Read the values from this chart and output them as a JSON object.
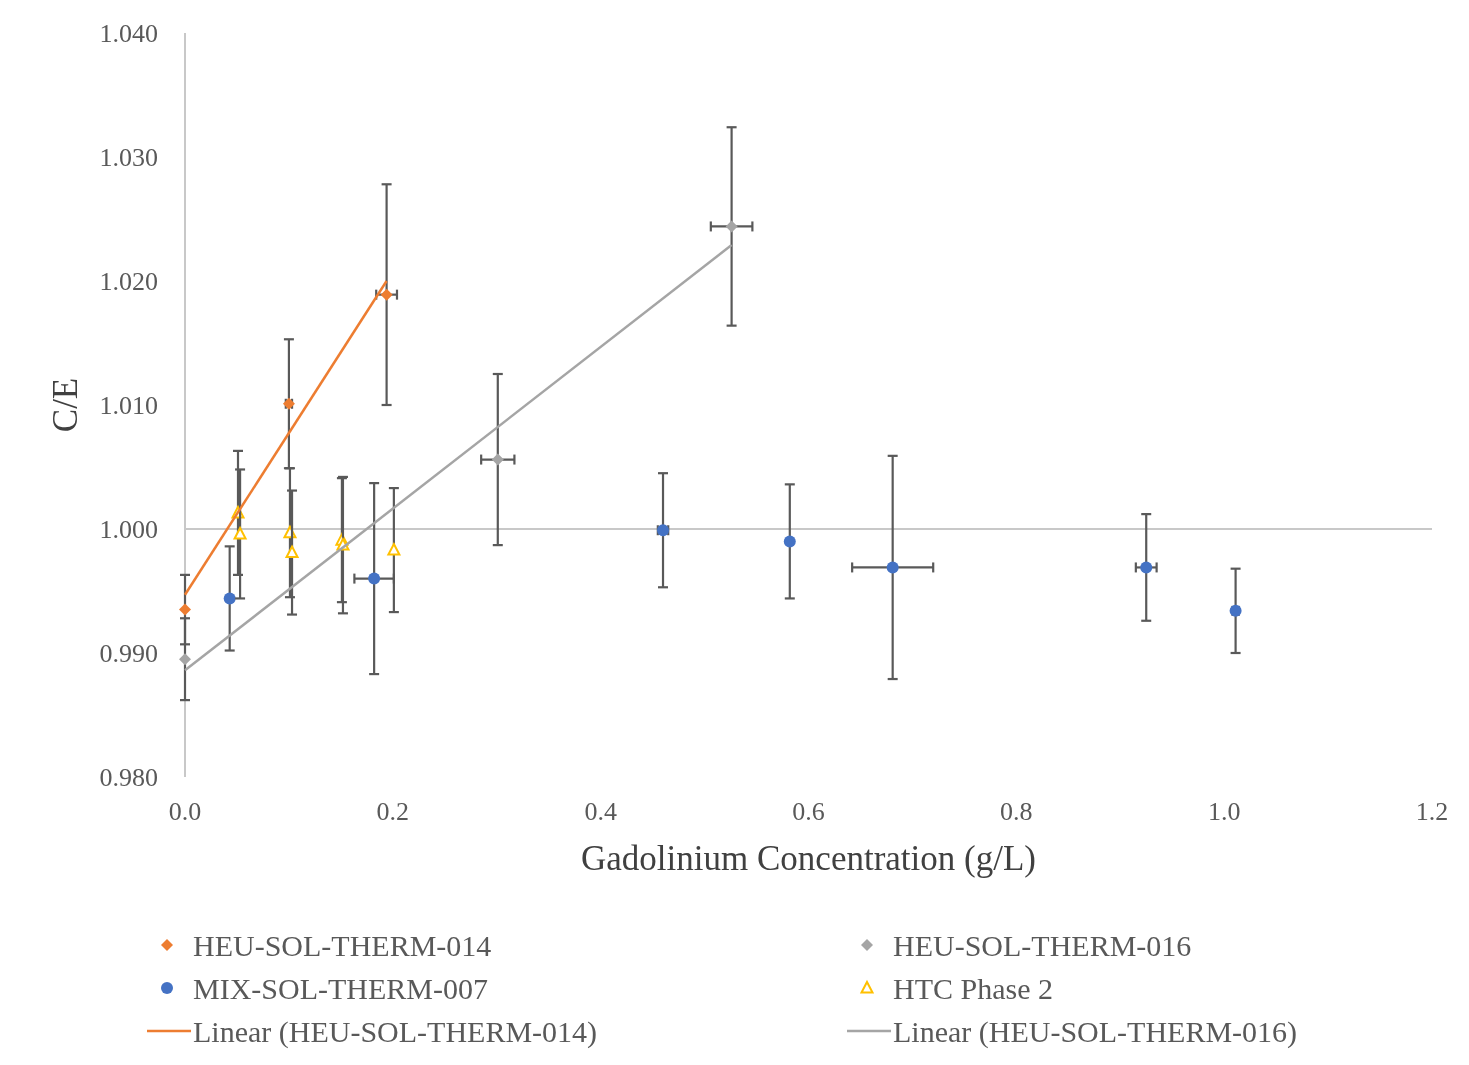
{
  "chart_data": {
    "type": "scatter",
    "xlabel": "Gadolinium Concentration (g/L)",
    "ylabel": "C/E",
    "xlim": [
      0,
      1.2
    ],
    "xticks": [
      {
        "value": 0,
        "label": "0.0"
      },
      {
        "value": 0.2,
        "label": "0.2"
      },
      {
        "value": 0.4,
        "label": "0.4"
      },
      {
        "value": 0.6,
        "label": "0.6"
      },
      {
        "value": 0.8,
        "label": "0.8"
      },
      {
        "value": 1,
        "label": "1.0"
      },
      {
        "value": 1.2,
        "label": "1.2"
      }
    ],
    "ylim": [
      0.98,
      1.04
    ],
    "yticks": [
      {
        "value": 0.98,
        "label": "0.980"
      },
      {
        "value": 0.99,
        "label": "0.990"
      },
      {
        "value": 1,
        "label": "1.000"
      },
      {
        "value": 1.01,
        "label": "1.010"
      },
      {
        "value": 1.02,
        "label": "1.020"
      },
      {
        "value": 1.03,
        "label": "1.030"
      },
      {
        "value": 1.04,
        "label": "1.040"
      }
    ],
    "grid": false,
    "legend": "bottom",
    "ref_lines": [
      {
        "axis": "y",
        "value": 1,
        "color": "#c8c8c8"
      }
    ],
    "series": [
      {
        "name": "HEU-SOL-THERM-014",
        "color": "#ed7d31",
        "marker": "diamond",
        "x": [
          0,
          0.1,
          0.194
        ],
        "values": [
          0.9935,
          1.0101,
          1.0189
        ],
        "errors": [
          0.0028,
          0.0052,
          0.0089
        ],
        "xerrors": [
          null,
          0.003,
          0.01
        ]
      },
      {
        "name": "HEU-SOL-THERM-016",
        "color": "#a5a5a5",
        "marker": "diamond",
        "x": [
          0,
          0.301,
          0.526
        ],
        "values": [
          0.9895,
          1.0056,
          1.0244
        ],
        "errors": [
          0.0033,
          0.0069,
          0.008
        ],
        "xerrors": [
          null,
          0.016,
          0.02
        ]
      },
      {
        "name": "MIX-SOL-THERM-007",
        "color": "#4472c4",
        "marker": "circle",
        "x": [
          0.043,
          0.182,
          0.46,
          0.582,
          0.681,
          0.925,
          1.011
        ],
        "values": [
          0.9944,
          0.996,
          0.9999,
          0.999,
          0.9969,
          0.9969,
          0.9934
        ],
        "errors": [
          0.0042,
          0.0077,
          0.0046,
          0.0046,
          0.009,
          0.0043,
          0.0034
        ],
        "xerrors": [
          null,
          0.019,
          0.005,
          null,
          0.039,
          0.01,
          0.003
        ]
      },
      {
        "name": "HTC Phase 2",
        "color": "#ffc000",
        "marker": "triangle",
        "x": [
          0.051,
          0.053,
          0.101,
          0.103,
          0.151,
          0.152,
          0.201
        ],
        "values": [
          1.0013,
          0.9996,
          0.9997,
          0.9981,
          0.9991,
          0.9987,
          0.9983
        ],
        "errors": [
          0.005,
          0.0052,
          0.0052,
          0.005,
          0.005,
          0.0055,
          0.005
        ]
      },
      {
        "name": "Linear (HEU-SOL-THERM-014)",
        "type": "line",
        "color": "#ed7d31",
        "x": [
          0,
          0.194
        ],
        "values": [
          0.9947,
          1.02
        ]
      },
      {
        "name": "Linear (HEU-SOL-THERM-016)",
        "type": "line",
        "color": "#a5a5a5",
        "x": [
          0,
          0.526
        ],
        "values": [
          0.9886,
          1.0229
        ]
      }
    ]
  }
}
